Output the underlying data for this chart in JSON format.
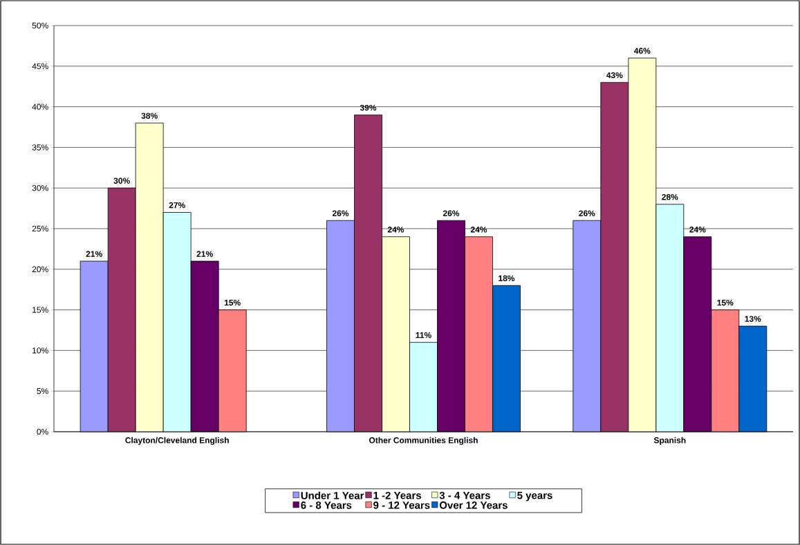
{
  "chart_data": {
    "type": "bar",
    "categories": [
      "Clayton/Cleveland English",
      "Other Communities English",
      "Spanish"
    ],
    "series": [
      {
        "name": "Under 1 Year",
        "color": "#9999ff",
        "values": [
          21,
          26,
          26
        ],
        "value_labels": [
          "21%",
          "26%",
          "26%"
        ]
      },
      {
        "name": "1 -2 Years",
        "color": "#993366",
        "values": [
          30,
          39,
          43
        ],
        "value_labels": [
          "30%",
          "39%",
          "43%"
        ]
      },
      {
        "name": "3 - 4 Years",
        "color": "#ffffcc",
        "values": [
          38,
          24,
          46
        ],
        "value_labels": [
          "38%",
          "24%",
          "46%"
        ]
      },
      {
        "name": "5 years",
        "color": "#ccffff",
        "values": [
          27,
          11,
          28
        ],
        "value_labels": [
          "27%",
          "11%",
          "28%"
        ]
      },
      {
        "name": "6 - 8 Years",
        "color": "#660066",
        "values": [
          21,
          26,
          24
        ],
        "value_labels": [
          "21%",
          "26%",
          "24%"
        ]
      },
      {
        "name": "9 - 12 Years",
        "color": "#ff8080",
        "values": [
          15,
          24,
          15
        ],
        "value_labels": [
          "15%",
          "24%",
          "15%"
        ]
      },
      {
        "name": "Over 12 Years",
        "color": "#0066cc",
        "values": [
          null,
          18,
          13
        ],
        "value_labels": [
          null,
          "18%",
          "13%"
        ]
      }
    ],
    "ylim": [
      0,
      50
    ],
    "yticks": [
      {
        "value": 0,
        "label": "0%"
      },
      {
        "value": 5,
        "label": "5%"
      },
      {
        "value": 10,
        "label": "10%"
      },
      {
        "value": 15,
        "label": "15%"
      },
      {
        "value": 20,
        "label": "20%"
      },
      {
        "value": 25,
        "label": "25%"
      },
      {
        "value": 30,
        "label": "30%"
      },
      {
        "value": 35,
        "label": "35%"
      },
      {
        "value": 40,
        "label": "40%"
      },
      {
        "value": 45,
        "label": "45%"
      },
      {
        "value": 50,
        "label": "50%"
      }
    ],
    "grid": "y",
    "legend": "bottom"
  }
}
